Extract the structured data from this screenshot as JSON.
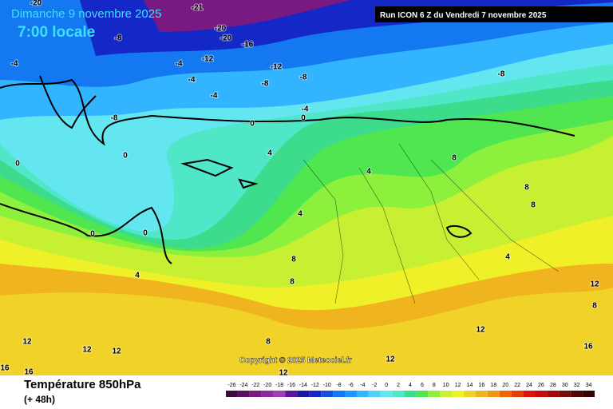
{
  "header": {
    "title": "Dimanche 9 novembre 2025",
    "subtitle": "7:00 locale",
    "run": "Run ICON 6 Z du Vendredi 7 novembre 2025",
    "copyright": "Copyright © 2025 Meteociel.fr"
  },
  "footer": {
    "title": "Température 850hPa",
    "subtitle": "(+ 48h)"
  },
  "legend": {
    "values": [
      -26,
      -24,
      -22,
      -20,
      -18,
      -16,
      -14,
      -12,
      -10,
      -8,
      -6,
      -4,
      -2,
      0,
      2,
      4,
      6,
      8,
      10,
      12,
      14,
      16,
      18,
      20,
      22,
      24,
      26,
      28,
      30,
      32,
      34
    ],
    "colors": [
      "#3d0a3d",
      "#5a1060",
      "#781a82",
      "#8c28a0",
      "#a03cb4",
      "#5a14a0",
      "#1e14a0",
      "#1428c8",
      "#1450dc",
      "#1478f0",
      "#1e96ff",
      "#32b4ff",
      "#50d2ff",
      "#64e6f0",
      "#50e6c8",
      "#3cdc8c",
      "#50e650",
      "#8cf03c",
      "#c8f032",
      "#f0f028",
      "#f0d228",
      "#f0b41e",
      "#f09614",
      "#f0640a",
      "#e63c0a",
      "#dc140a",
      "#c80a0a",
      "#a00a0a",
      "#780a0a",
      "#500505",
      "#320303"
    ]
  },
  "contour_labels": [
    -20,
    -21,
    -20,
    -20,
    -16,
    -8,
    -12,
    -12,
    -8,
    -8,
    -8,
    -4,
    -4,
    -4,
    -4,
    -4,
    -8,
    0,
    0,
    0,
    0,
    0,
    0,
    4,
    4,
    4,
    4,
    8,
    8,
    8,
    8,
    8,
    12,
    12,
    12,
    12,
    12,
    12,
    12,
    16,
    16,
    16,
    8,
    4,
    8
  ]
}
